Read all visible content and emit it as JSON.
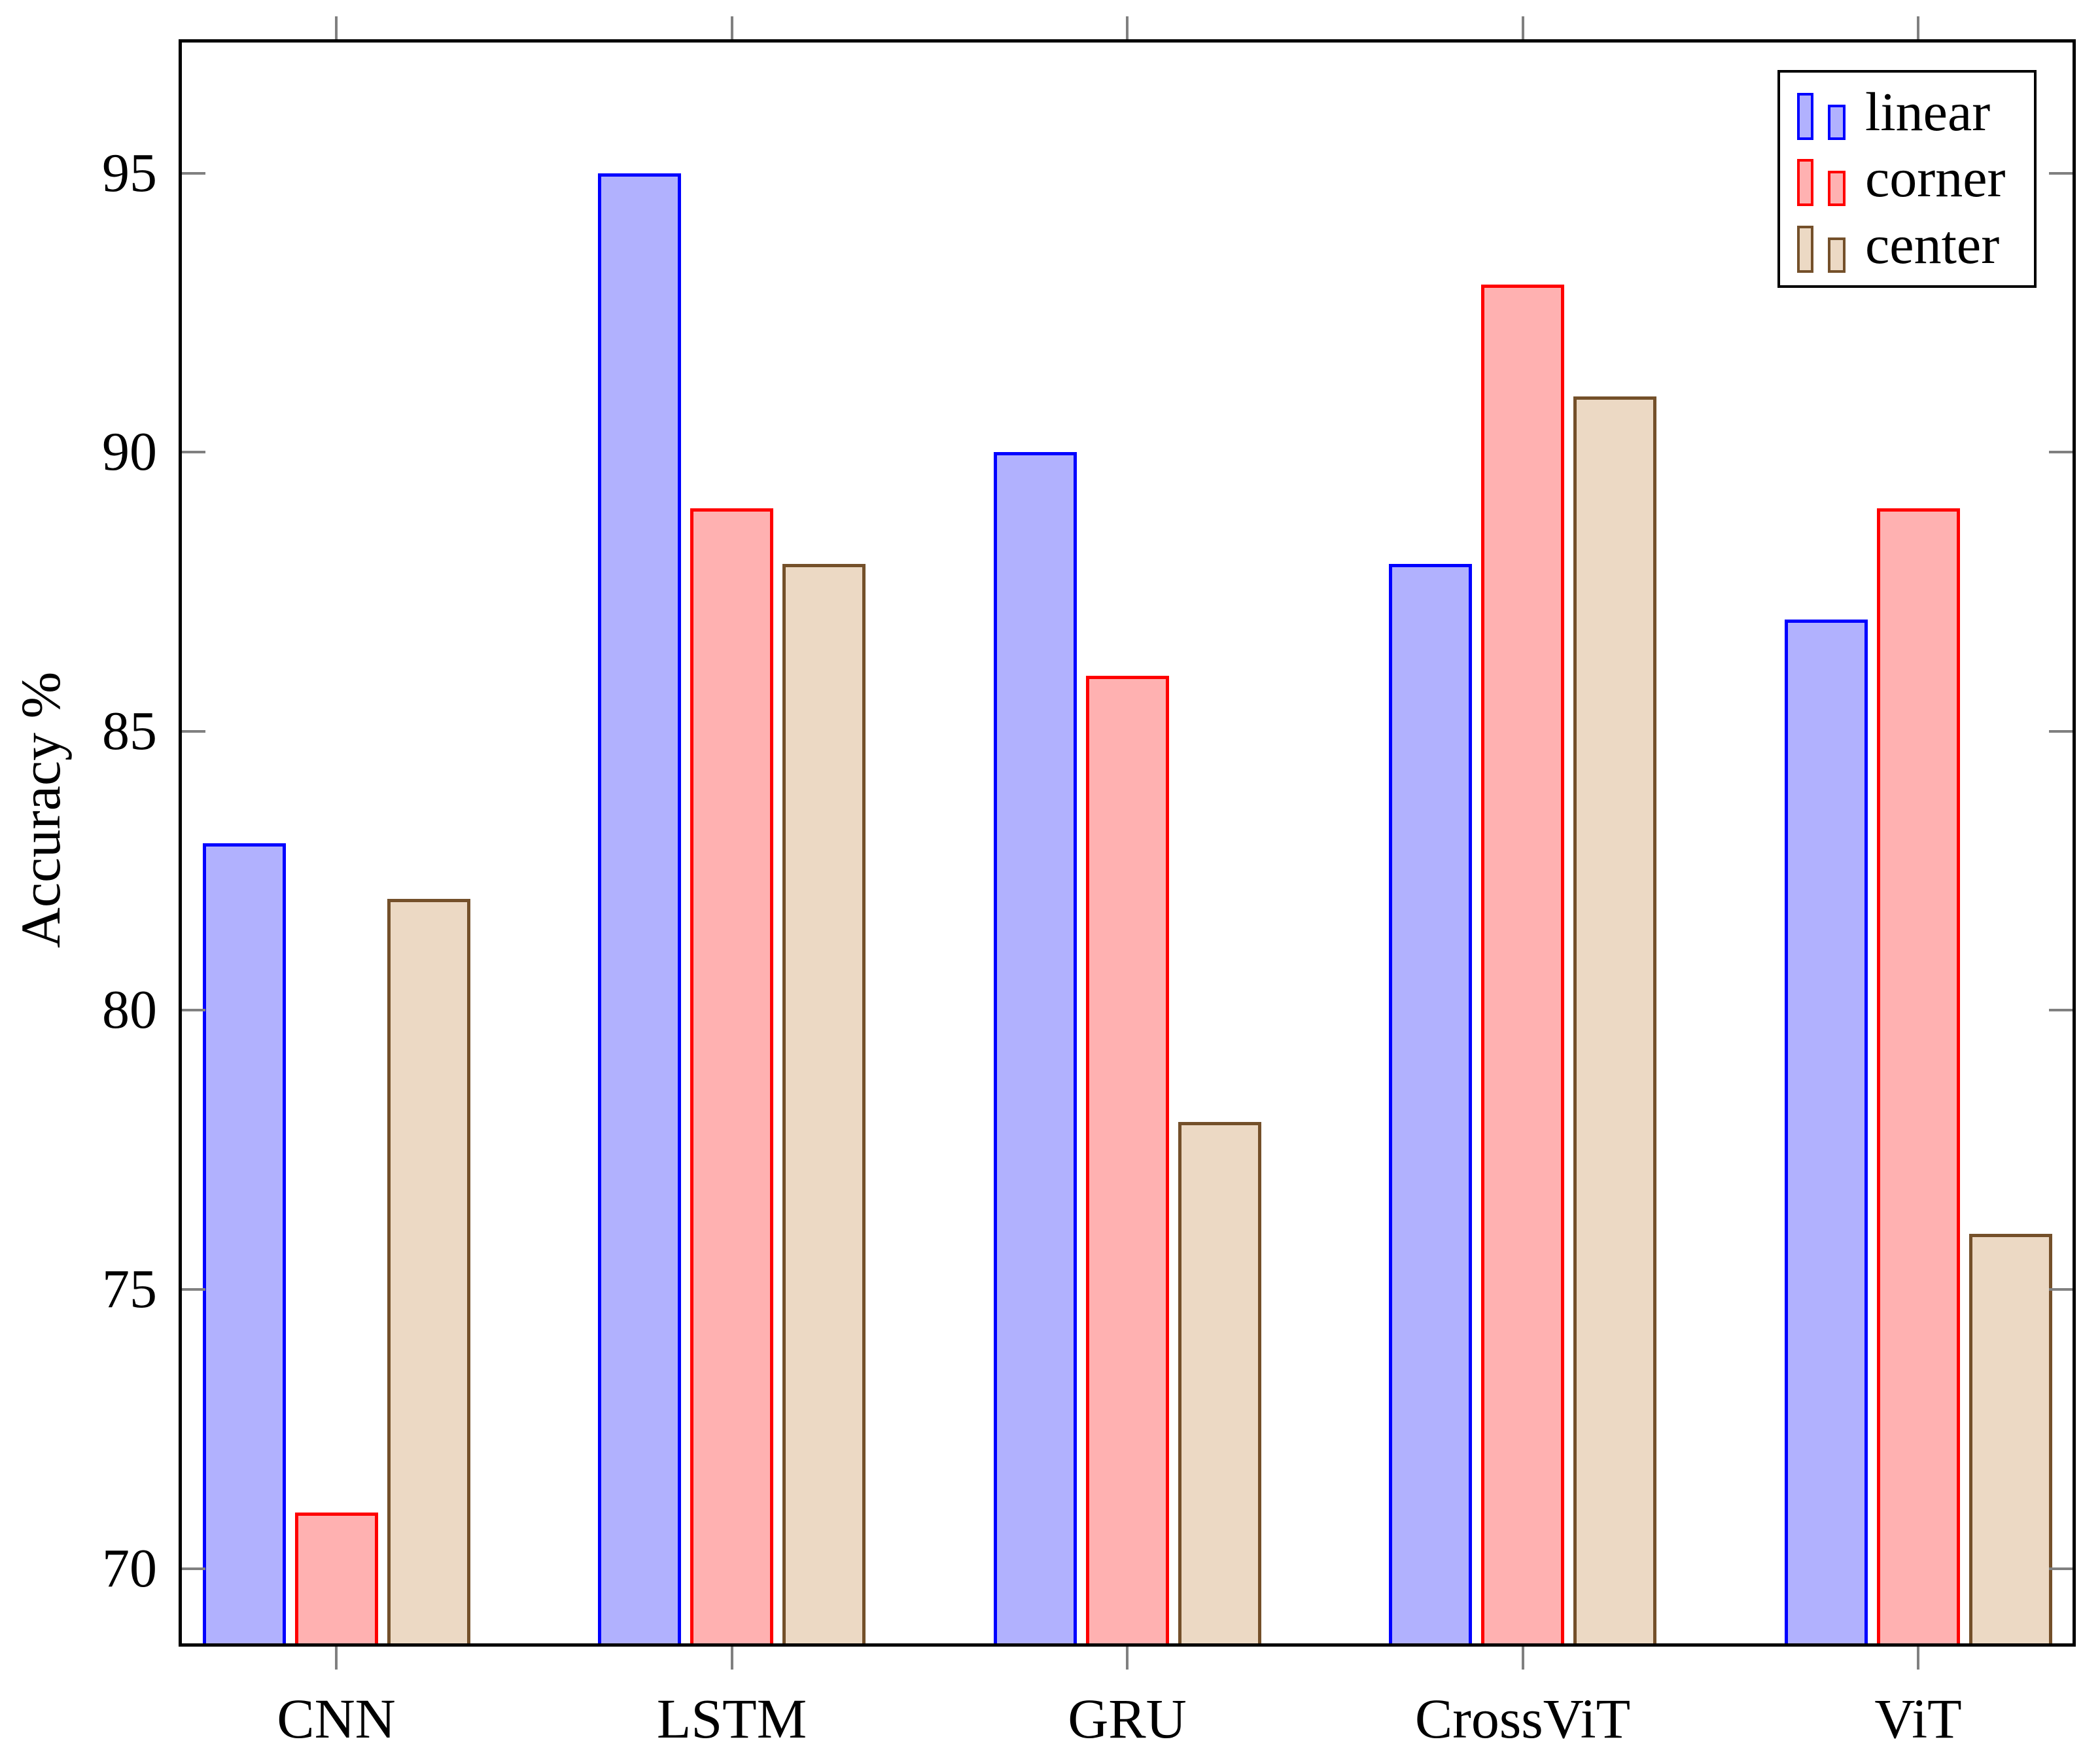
{
  "chart_data": {
    "type": "bar",
    "title": "",
    "xlabel": "",
    "ylabel": "Accuracy %",
    "categories": [
      "CNN",
      "LSTM",
      "GRU",
      "CrossViT",
      "ViT"
    ],
    "series": [
      {
        "name": "linear",
        "fill": "#b1b1fe",
        "border": "#0000ff",
        "values": [
          83,
          95,
          90,
          88,
          87
        ]
      },
      {
        "name": "corner",
        "fill": "#ffb1b1",
        "border": "#ff0000",
        "values": [
          71,
          89,
          86,
          93,
          89
        ]
      },
      {
        "name": "center",
        "fill": "#ecd9c4",
        "border": "#74502a",
        "values": [
          82,
          88,
          78,
          91,
          76
        ]
      }
    ],
    "yticks": [
      70,
      75,
      80,
      85,
      90,
      95
    ],
    "ylim": [
      68.6,
      97.4
    ],
    "grid": false,
    "legend_position": "top-right",
    "axis_color": "#000000",
    "tick_color": "#808080"
  }
}
